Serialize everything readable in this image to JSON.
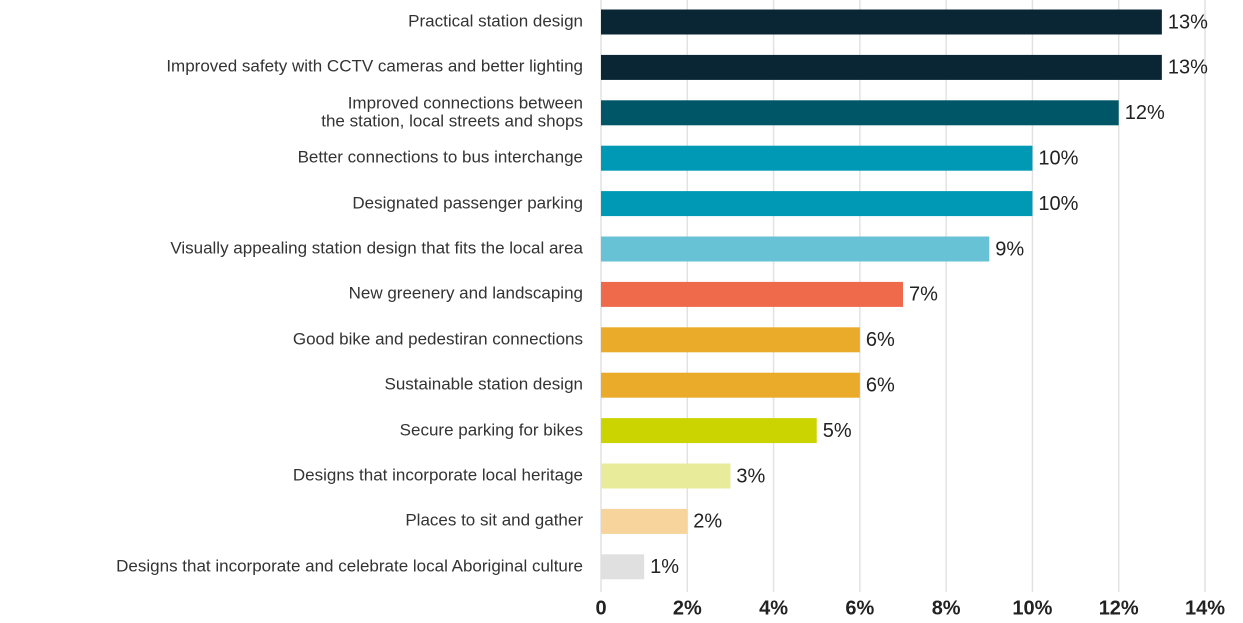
{
  "chart_data": {
    "type": "barh",
    "categories": [
      "Practical station design",
      "Improved safety with CCTV cameras and better lighting",
      "Improved connections between\nthe station, local streets and shops",
      "Better connections to bus interchange",
      "Designated passenger parking",
      "Visually appealing station design that fits the local area",
      "New greenery and landscaping",
      "Good bike and pedestiran connections",
      "Sustainable station design",
      "Secure parking for bikes",
      "Designs that incorporate local heritage",
      "Places to sit and gather",
      "Designs that incorporate and celebrate local Aboriginal culture"
    ],
    "values": [
      13,
      13,
      12,
      10,
      10,
      9,
      7,
      6,
      6,
      5,
      3,
      2,
      1
    ],
    "value_labels": [
      "13%",
      "13%",
      "12%",
      "10%",
      "10%",
      "9%",
      "7%",
      "6%",
      "6%",
      "5%",
      "3%",
      "2%",
      "1%"
    ],
    "colors": [
      "#0a2533",
      "#0a2533",
      "#005566",
      "#0099b5",
      "#0099b5",
      "#66c2d4",
      "#ee6a4a",
      "#eaab2a",
      "#eaab2a",
      "#ccd400",
      "#e8eb9a",
      "#f6d49b",
      "#e0e0e0"
    ],
    "xlim": [
      0,
      14
    ],
    "xticks": [
      0,
      {
        "value": 2,
        "label": "2%"
      },
      {
        "value": 4,
        "label": "4%"
      },
      {
        "value": 6,
        "label": "6%"
      },
      {
        "value": 8,
        "label": "8%"
      },
      {
        "value": 10,
        "label": "10%"
      },
      {
        "value": 12,
        "label": "12%"
      },
      {
        "value": 14,
        "label": "14%"
      }
    ],
    "grid": true
  }
}
